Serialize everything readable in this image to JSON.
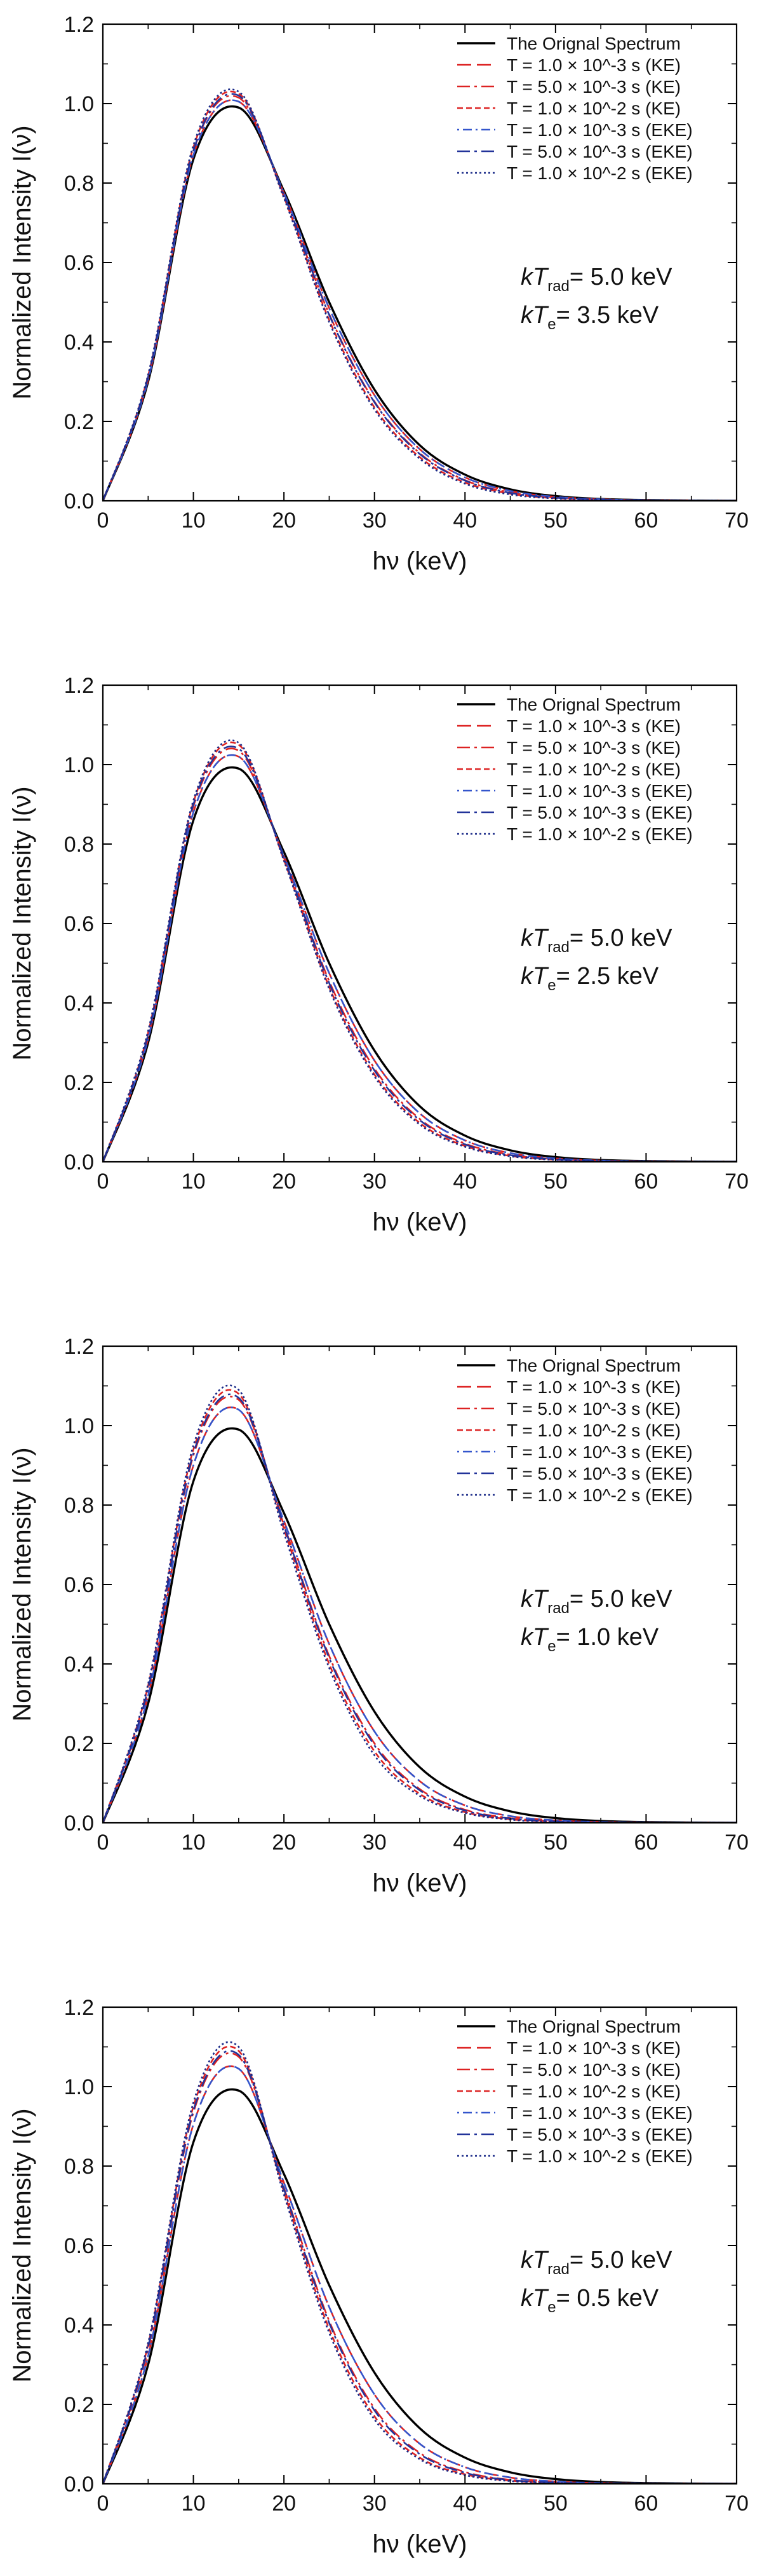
{
  "chart_data": [
    {
      "type": "line",
      "title": "",
      "xlabel": "hν   (keV)",
      "ylabel": "Normalized Intensity  I(ν)",
      "xlim": [
        0,
        70
      ],
      "ylim": [
        0,
        1.2
      ],
      "xticks": [
        "0",
        "10",
        "20",
        "30",
        "40",
        "50",
        "60",
        "70"
      ],
      "yticks": [
        "0.0",
        "0.2",
        "0.4",
        "0.6",
        "0.8",
        "1.0",
        "1.2"
      ],
      "annotation": {
        "kTrad_label": "kT",
        "kTrad_sub": "rad",
        "kTrad_value": "= 5.0 keV",
        "kTe_label": "kT",
        "kTe_sub": "e",
        "kTe_value": "= 3.5 keV"
      },
      "x": [
        0,
        5,
        10,
        15,
        20,
        25,
        30,
        35,
        40,
        45,
        50,
        55,
        60,
        65,
        70
      ],
      "series": [
        {
          "name": "The Orignal Spectrum",
          "color": "#000000",
          "dash": "solid",
          "values": [
            0,
            0.3,
            0.86,
            0.99,
            0.78,
            0.5,
            0.28,
            0.14,
            0.066,
            0.029,
            0.012,
            0.0047,
            0.0018,
            0.0007,
            0.0002
          ]
        },
        {
          "name": "T = 1.0 × 10^-3 s (KE)",
          "color": "#dd2222",
          "dash": "long-dash",
          "values": [
            0,
            0.305,
            0.87,
            1.005,
            0.775,
            0.485,
            0.266,
            0.13,
            0.059,
            0.025,
            0.01,
            0.0039,
            0.0014,
            0.0005,
            0.0002
          ]
        },
        {
          "name": "T = 5.0 × 10^-3 s (KE)",
          "color": "#dd2222",
          "dash": "dash-dot",
          "values": [
            0,
            0.31,
            0.88,
            1.015,
            0.77,
            0.47,
            0.25,
            0.12,
            0.052,
            0.021,
            0.008,
            0.003,
            0.001,
            0.0004,
            0.0001
          ]
        },
        {
          "name": "T = 1.0 × 10^-2 s (KE)",
          "color": "#dd2222",
          "dash": "short-dash",
          "values": [
            0,
            0.315,
            0.89,
            1.025,
            0.765,
            0.455,
            0.235,
            0.11,
            0.046,
            0.018,
            0.0065,
            0.0022,
            0.0007,
            0.0002,
            0.0001
          ]
        },
        {
          "name": "T = 1.0 × 10^-3 s (EKE)",
          "color": "#3355cc",
          "dash": "dot-dash",
          "values": [
            0,
            0.305,
            0.87,
            1.005,
            0.775,
            0.485,
            0.266,
            0.13,
            0.059,
            0.025,
            0.01,
            0.0039,
            0.0014,
            0.0005,
            0.0002
          ]
        },
        {
          "name": "T = 5.0 × 10^-3 s (EKE)",
          "color": "#223399",
          "dash": "dash-dot",
          "values": [
            0,
            0.312,
            0.882,
            1.02,
            0.77,
            0.468,
            0.248,
            0.118,
            0.051,
            0.02,
            0.0078,
            0.0029,
            0.001,
            0.0003,
            0.0001
          ]
        },
        {
          "name": "T = 1.0 × 10^-2 s (EKE)",
          "color": "#1a2a88",
          "dash": "dotted",
          "values": [
            0,
            0.318,
            0.895,
            1.03,
            0.762,
            0.45,
            0.23,
            0.106,
            0.043,
            0.016,
            0.0058,
            0.0019,
            0.0006,
            0.0002,
            0.0001
          ]
        }
      ]
    },
    {
      "type": "line",
      "title": "",
      "xlabel": "hν   (keV)",
      "ylabel": "Normalized Intensity  I(ν)",
      "xlim": [
        0,
        70
      ],
      "ylim": [
        0,
        1.2
      ],
      "xticks": [
        "0",
        "10",
        "20",
        "30",
        "40",
        "50",
        "60",
        "70"
      ],
      "yticks": [
        "0.0",
        "0.2",
        "0.4",
        "0.6",
        "0.8",
        "1.0",
        "1.2"
      ],
      "annotation": {
        "kTrad_label": "kT",
        "kTrad_sub": "rad",
        "kTrad_value": "= 5.0 keV",
        "kTe_label": "kT",
        "kTe_sub": "e",
        "kTe_value": "= 2.5 keV"
      },
      "x": [
        0,
        5,
        10,
        15,
        20,
        25,
        30,
        35,
        40,
        45,
        50,
        55,
        60,
        65,
        70
      ],
      "series": [
        {
          "name": "The Orignal Spectrum",
          "color": "#000000",
          "dash": "solid",
          "values": [
            0,
            0.3,
            0.86,
            0.99,
            0.78,
            0.5,
            0.28,
            0.14,
            0.066,
            0.029,
            0.012,
            0.0047,
            0.0018,
            0.0007,
            0.0002
          ]
        },
        {
          "name": "T = 1.0 × 10^-3 s (KE)",
          "color": "#dd2222",
          "dash": "long-dash",
          "values": [
            0,
            0.31,
            0.88,
            1.02,
            0.77,
            0.475,
            0.255,
            0.122,
            0.054,
            0.022,
            0.0086,
            0.0032,
            0.0011,
            0.0004,
            0.0001
          ]
        },
        {
          "name": "T = 5.0 × 10^-3 s (KE)",
          "color": "#dd2222",
          "dash": "dash-dot",
          "values": [
            0,
            0.318,
            0.895,
            1.035,
            0.765,
            0.455,
            0.235,
            0.108,
            0.046,
            0.018,
            0.0066,
            0.0023,
            0.0008,
            0.0003,
            0.0001
          ]
        },
        {
          "name": "T = 1.0 × 10^-2 s (KE)",
          "color": "#dd2222",
          "dash": "short-dash",
          "values": [
            0,
            0.325,
            0.905,
            1.05,
            0.76,
            0.44,
            0.22,
            0.098,
            0.04,
            0.015,
            0.0052,
            0.0017,
            0.0005,
            0.0002,
            0.0001
          ]
        },
        {
          "name": "T = 1.0 × 10^-3 s (EKE)",
          "color": "#3355cc",
          "dash": "dot-dash",
          "values": [
            0,
            0.31,
            0.88,
            1.02,
            0.77,
            0.475,
            0.255,
            0.122,
            0.054,
            0.022,
            0.0086,
            0.0032,
            0.0011,
            0.0004,
            0.0001
          ]
        },
        {
          "name": "T = 5.0 × 10^-3 s (EKE)",
          "color": "#223399",
          "dash": "dash-dot",
          "values": [
            0,
            0.32,
            0.9,
            1.04,
            0.765,
            0.45,
            0.23,
            0.105,
            0.044,
            0.017,
            0.0062,
            0.0021,
            0.0007,
            0.0002,
            0.0001
          ]
        },
        {
          "name": "T = 1.0 × 10^-2 s (EKE)",
          "color": "#1a2a88",
          "dash": "dotted",
          "values": [
            0,
            0.33,
            0.91,
            1.055,
            0.758,
            0.435,
            0.215,
            0.094,
            0.038,
            0.014,
            0.0048,
            0.0015,
            0.0005,
            0.0001,
            0.0
          ]
        }
      ]
    },
    {
      "type": "line",
      "title": "",
      "xlabel": "hν   (keV)",
      "ylabel": "Normalized Intensity  I(ν)",
      "xlim": [
        0,
        70
      ],
      "ylim": [
        0,
        1.2
      ],
      "xticks": [
        "0",
        "10",
        "20",
        "30",
        "40",
        "50",
        "60",
        "70"
      ],
      "yticks": [
        "0.0",
        "0.2",
        "0.4",
        "0.6",
        "0.8",
        "1.0",
        "1.2"
      ],
      "annotation": {
        "kTrad_label": "kT",
        "kTrad_sub": "rad",
        "kTrad_value": "= 5.0 keV",
        "kTe_label": "kT",
        "kTe_sub": "e",
        "kTe_value": "= 1.0 keV"
      },
      "x": [
        0,
        5,
        10,
        15,
        20,
        25,
        30,
        35,
        40,
        45,
        50,
        55,
        60,
        65,
        70
      ],
      "series": [
        {
          "name": "The Orignal Spectrum",
          "color": "#000000",
          "dash": "solid",
          "values": [
            0,
            0.3,
            0.86,
            0.99,
            0.78,
            0.5,
            0.28,
            0.14,
            0.066,
            0.029,
            0.012,
            0.0047,
            0.0018,
            0.0007,
            0.0002
          ]
        },
        {
          "name": "T = 1.0 × 10^-3 s (KE)",
          "color": "#dd2222",
          "dash": "long-dash",
          "values": [
            0,
            0.32,
            0.9,
            1.04,
            0.76,
            0.45,
            0.23,
            0.105,
            0.044,
            0.017,
            0.0062,
            0.0021,
            0.0007,
            0.0002,
            0.0001
          ]
        },
        {
          "name": "T = 5.0 × 10^-3 s (KE)",
          "color": "#dd2222",
          "dash": "dash-dot",
          "values": [
            0,
            0.335,
            0.925,
            1.065,
            0.75,
            0.42,
            0.2,
            0.085,
            0.033,
            0.012,
            0.004,
            0.0013,
            0.0004,
            0.0001,
            0.0
          ]
        },
        {
          "name": "T = 1.0 × 10^-2 s (KE)",
          "color": "#dd2222",
          "dash": "short-dash",
          "values": [
            0,
            0.345,
            0.94,
            1.08,
            0.74,
            0.4,
            0.18,
            0.073,
            0.027,
            0.009,
            0.0029,
            0.0009,
            0.0003,
            0.0001,
            0.0
          ]
        },
        {
          "name": "T = 1.0 × 10^-3 s (EKE)",
          "color": "#3355cc",
          "dash": "dot-dash",
          "values": [
            0,
            0.32,
            0.9,
            1.04,
            0.76,
            0.45,
            0.23,
            0.105,
            0.044,
            0.017,
            0.0062,
            0.0021,
            0.0007,
            0.0002,
            0.0001
          ]
        },
        {
          "name": "T = 5.0 × 10^-3 s (EKE)",
          "color": "#223399",
          "dash": "dash-dot",
          "values": [
            0,
            0.338,
            0.93,
            1.07,
            0.748,
            0.415,
            0.195,
            0.082,
            0.031,
            0.011,
            0.0036,
            0.0011,
            0.0003,
            0.0001,
            0.0
          ]
        },
        {
          "name": "T = 1.0 × 10^-2 s (EKE)",
          "color": "#1a2a88",
          "dash": "dotted",
          "values": [
            0,
            0.35,
            0.95,
            1.09,
            0.73,
            0.39,
            0.17,
            0.068,
            0.025,
            0.008,
            0.0025,
            0.0007,
            0.0002,
            0.0001,
            0.0
          ]
        }
      ]
    },
    {
      "type": "line",
      "title": "",
      "xlabel": "hν   (keV)",
      "ylabel": "Normalized Intensity  I(ν)",
      "xlim": [
        0,
        70
      ],
      "ylim": [
        0,
        1.2
      ],
      "xticks": [
        "0",
        "10",
        "20",
        "30",
        "40",
        "50",
        "60",
        "70"
      ],
      "yticks": [
        "0.0",
        "0.2",
        "0.4",
        "0.6",
        "0.8",
        "1.0",
        "1.2"
      ],
      "annotation": {
        "kTrad_label": "kT",
        "kTrad_sub": "rad",
        "kTrad_value": "= 5.0 keV",
        "kTe_label": "kT",
        "kTe_sub": "e",
        "kTe_value": "= 0.5 keV"
      },
      "x": [
        0,
        5,
        10,
        15,
        20,
        25,
        30,
        35,
        40,
        45,
        50,
        55,
        60,
        65,
        70
      ],
      "series": [
        {
          "name": "The Orignal Spectrum",
          "color": "#000000",
          "dash": "solid",
          "values": [
            0,
            0.3,
            0.86,
            0.99,
            0.78,
            0.5,
            0.28,
            0.14,
            0.066,
            0.029,
            0.012,
            0.0047,
            0.0018,
            0.0007,
            0.0002
          ]
        },
        {
          "name": "T = 1.0 × 10^-3 s (KE)",
          "color": "#dd2222",
          "dash": "long-dash",
          "values": [
            0,
            0.322,
            0.905,
            1.045,
            0.758,
            0.445,
            0.225,
            0.101,
            0.042,
            0.016,
            0.0058,
            0.0019,
            0.0006,
            0.0002,
            0.0001
          ]
        },
        {
          "name": "T = 5.0 × 10^-3 s (KE)",
          "color": "#dd2222",
          "dash": "dash-dot",
          "values": [
            0,
            0.34,
            0.935,
            1.075,
            0.745,
            0.41,
            0.19,
            0.078,
            0.03,
            0.01,
            0.0034,
            0.001,
            0.0003,
            0.0001,
            0.0
          ]
        },
        {
          "name": "T = 1.0 × 10^-2 s (KE)",
          "color": "#dd2222",
          "dash": "short-dash",
          "values": [
            0,
            0.35,
            0.95,
            1.09,
            0.735,
            0.39,
            0.17,
            0.066,
            0.024,
            0.008,
            0.0024,
            0.0007,
            0.0002,
            0.0001,
            0.0
          ]
        },
        {
          "name": "T = 1.0 × 10^-3 s (EKE)",
          "color": "#3355cc",
          "dash": "dot-dash",
          "values": [
            0,
            0.322,
            0.905,
            1.045,
            0.758,
            0.445,
            0.225,
            0.101,
            0.042,
            0.016,
            0.0058,
            0.0019,
            0.0006,
            0.0002,
            0.0001
          ]
        },
        {
          "name": "T = 5.0 × 10^-3 s (EKE)",
          "color": "#223399",
          "dash": "dash-dot",
          "values": [
            0,
            0.345,
            0.94,
            1.08,
            0.742,
            0.405,
            0.185,
            0.075,
            0.028,
            0.0095,
            0.0031,
            0.0009,
            0.0003,
            0.0001,
            0.0
          ]
        },
        {
          "name": "T = 1.0 × 10^-2 s (EKE)",
          "color": "#1a2a88",
          "dash": "dotted",
          "values": [
            0,
            0.355,
            0.96,
            1.1,
            0.728,
            0.38,
            0.162,
            0.062,
            0.022,
            0.007,
            0.0021,
            0.0006,
            0.0002,
            0.0,
            0.0
          ]
        }
      ]
    }
  ]
}
